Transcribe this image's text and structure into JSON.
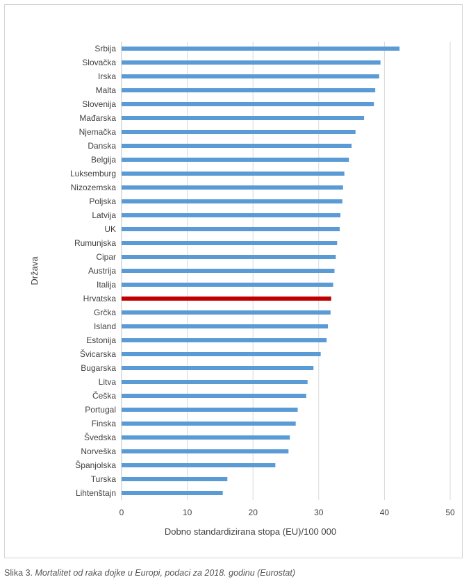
{
  "chart_data": {
    "type": "bar",
    "orientation": "horizontal",
    "categories": [
      "Srbija",
      "Slovačka",
      "Irska",
      "Malta",
      "Slovenija",
      "Mađarska",
      "Njemačka",
      "Danska",
      "Belgija",
      "Luksemburg",
      "Nizozemska",
      "Poljska",
      "Latvija",
      "UK",
      "Rumunjska",
      "Cipar",
      "Austrija",
      "Italija",
      "Hrvatska",
      "Grčka",
      "Island",
      "Estonija",
      "Švicarska",
      "Bugarska",
      "Litva",
      "Češka",
      "Portugal",
      "Finska",
      "Švedska",
      "Norveška",
      "Španjolska",
      "Turska",
      "Lihtenštajn"
    ],
    "values": [
      42.3,
      39.4,
      39.2,
      38.6,
      38.4,
      36.9,
      35.6,
      35.0,
      34.6,
      33.9,
      33.7,
      33.6,
      33.3,
      33.2,
      32.8,
      32.6,
      32.4,
      32.2,
      31.9,
      31.8,
      31.4,
      31.2,
      30.3,
      29.2,
      28.3,
      28.1,
      26.8,
      26.5,
      25.6,
      25.4,
      23.4,
      16.1,
      15.4
    ],
    "highlight": {
      "category": "Hrvatska",
      "color": "#c00000"
    },
    "bar_color": "#5b9bd5",
    "xlim": [
      0,
      50
    ],
    "xticks": [
      0,
      10,
      20,
      30,
      40,
      50
    ],
    "xlabel": "Dobno standardizirana stopa (EU)/100 000",
    "ylabel": "Država",
    "grid": "vertical"
  },
  "caption": {
    "prefix": "Slika 3.",
    "text": "Mortalitet od raka dojke u Europi, podaci za 2018. godinu (Eurostat)"
  }
}
